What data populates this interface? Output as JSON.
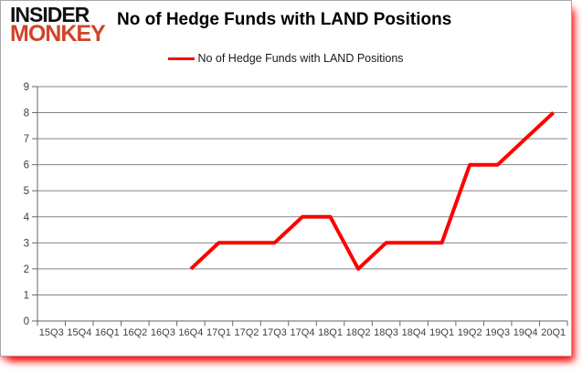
{
  "brand": {
    "line1": "INSIDER",
    "line2": "MONKEY",
    "insider_color": "#111111",
    "monkey_color": "#d0442b"
  },
  "header": {
    "title": "No of Hedge Funds with LAND Positions"
  },
  "legend": {
    "label": "No of Hedge Funds with LAND Positions",
    "line_color": "#ff0000"
  },
  "chart_data": {
    "type": "line",
    "title": "No of Hedge Funds with LAND Positions",
    "categories": [
      "15Q3",
      "15Q4",
      "16Q1",
      "16Q2",
      "16Q3",
      "16Q4",
      "17Q1",
      "17Q2",
      "17Q3",
      "17Q4",
      "18Q1",
      "18Q2",
      "18Q3",
      "18Q4",
      "19Q1",
      "19Q2",
      "19Q3",
      "19Q4",
      "20Q1"
    ],
    "series": [
      {
        "name": "No of Hedge Funds with LAND Positions",
        "color": "#ff0000",
        "values": [
          null,
          null,
          null,
          null,
          null,
          2,
          3,
          3,
          3,
          4,
          4,
          2,
          3,
          3,
          3,
          6,
          6,
          7,
          8
        ]
      }
    ],
    "ylim": [
      0,
      9
    ],
    "yticks": [
      0,
      1,
      2,
      3,
      4,
      5,
      6,
      7,
      8,
      9
    ],
    "xlabel": "",
    "ylabel": "",
    "grid": true,
    "legend_position": "top"
  },
  "colors": {
    "grid": "#858585",
    "axis": "#666666",
    "tick_label": "#3f3f3f"
  }
}
